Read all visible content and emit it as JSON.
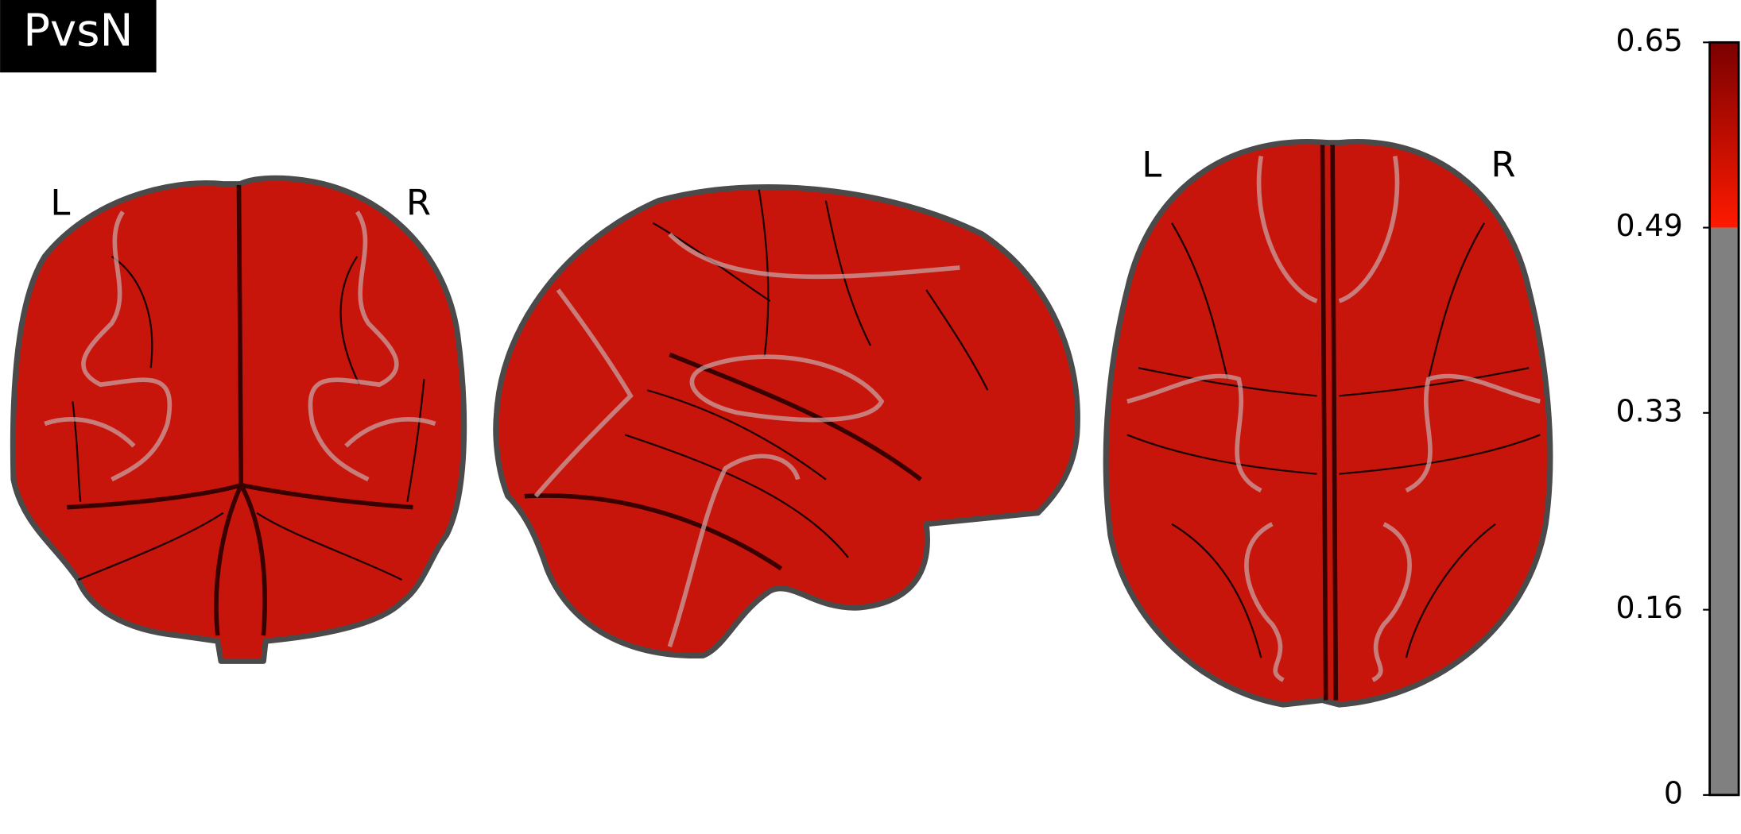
{
  "title": "PvsN",
  "orientation_labels": {
    "coronal": [
      "L",
      "R"
    ],
    "axial": [
      "L",
      "R"
    ]
  },
  "colorbar": {
    "range": [
      0,
      0.65
    ],
    "threshold": 0.49,
    "ticks": [
      0,
      0.16,
      0.33,
      0.49,
      0.65
    ],
    "colors": [
      "#ff1a00",
      "#7a0000"
    ],
    "below_threshold_color": "#808080"
  }
}
